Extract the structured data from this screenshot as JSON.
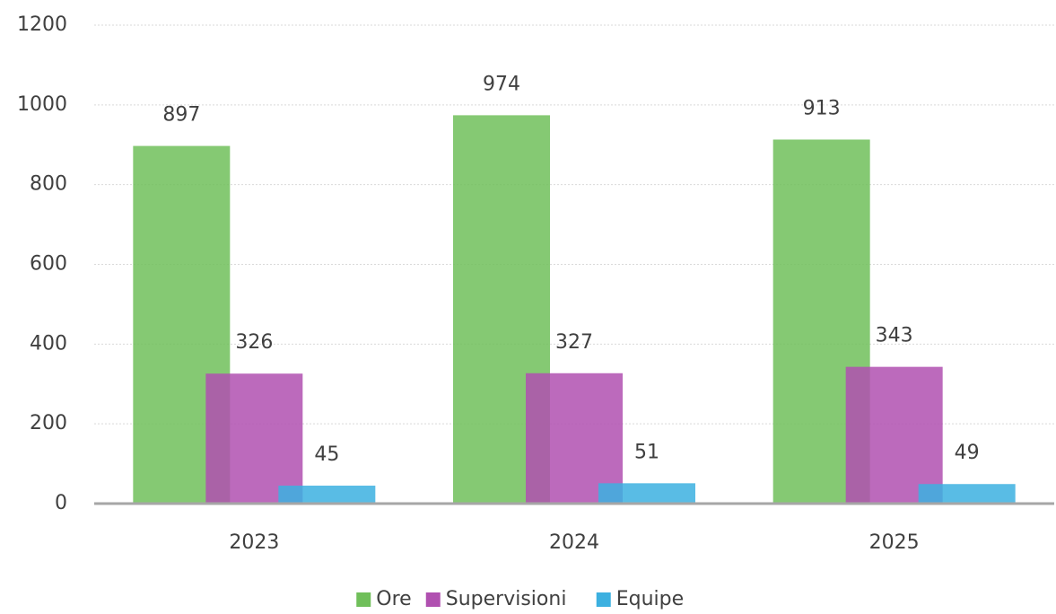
{
  "chart_data": {
    "type": "bar",
    "categories": [
      "2023",
      "2024",
      "2025"
    ],
    "series": [
      {
        "name": "Ore",
        "color": "#70bf5a",
        "values": [
          897,
          974,
          913
        ]
      },
      {
        "name": "Supervisioni",
        "color": "#b050b0",
        "values": [
          326,
          327,
          343
        ]
      },
      {
        "name": "Equipe",
        "color": "#3cb0e0",
        "values": [
          45,
          51,
          49
        ]
      }
    ],
    "ylim": [
      0,
      1200
    ],
    "yticks": [
      0,
      200,
      400,
      600,
      800,
      1000,
      1200
    ],
    "grid": true,
    "legend": "bottom",
    "data_labels": true
  }
}
